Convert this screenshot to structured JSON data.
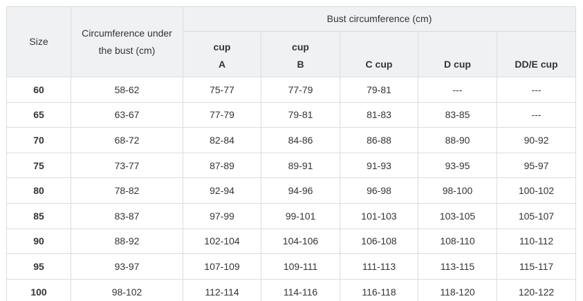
{
  "table": {
    "group_header": "Bust circumference (cm)",
    "headers": [
      "Size",
      "Circumference under the bust (cm)",
      "cup\nA",
      "cup\nB",
      "C cup",
      "D cup",
      "DD/E cup"
    ],
    "rows": [
      [
        "60",
        "58-62",
        "75-77",
        "77-79",
        "79-81",
        "---",
        "---"
      ],
      [
        "65",
        "63-67",
        "77-79",
        "79-81",
        "81-83",
        "83-85",
        "---"
      ],
      [
        "70",
        "68-72",
        "82-84",
        "84-86",
        "86-88",
        "88-90",
        "90-92"
      ],
      [
        "75",
        "73-77",
        "87-89",
        "89-91",
        "91-93",
        "93-95",
        "95-97"
      ],
      [
        "80",
        "78-82",
        "92-94",
        "94-96",
        "96-98",
        "98-100",
        "100-102"
      ],
      [
        "85",
        "83-87",
        "97-99",
        "99-101",
        "101-103",
        "103-105",
        "105-107"
      ],
      [
        "90",
        "88-92",
        "102-104",
        "104-106",
        "106-108",
        "108-110",
        "110-112"
      ],
      [
        "95",
        "93-97",
        "107-109",
        "109-111",
        "111-113",
        "113-115",
        "115-117"
      ],
      [
        "100",
        "98-102",
        "112-114",
        "114-116",
        "116-118",
        "118-120",
        "120-122"
      ]
    ]
  }
}
